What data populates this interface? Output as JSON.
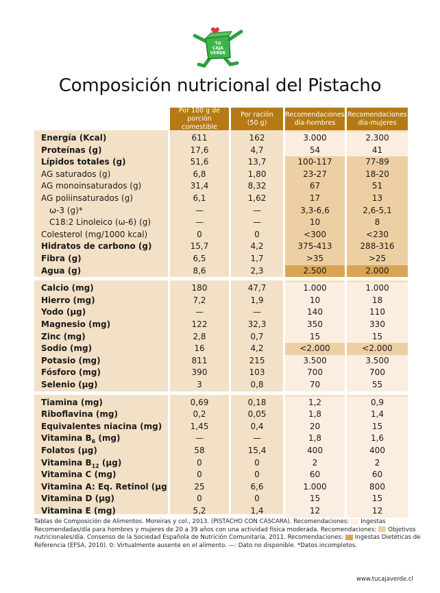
{
  "title": "Composición nutricional del Pistacho",
  "logo_text": [
    "TU",
    "CAJA",
    "VERDE"
  ],
  "colors": {
    "header": "#b67a14",
    "body": "#f3e1c7",
    "ingesta": "#fbeee0",
    "objetivo": "#edcfa4",
    "rdi": "#d8a656",
    "logo_green": "#3bb54a"
  },
  "headers": [
    [
      "Por 100 g de",
      "porción comestible"
    ],
    [
      "Por ración",
      "(50 g)"
    ],
    [
      "Recomendaciones",
      "día-hombres"
    ],
    [
      "Recomendaciones",
      "día-mujeres"
    ]
  ],
  "rows": [
    {
      "label": "Energía (Kcal)",
      "bold": true,
      "v": [
        "611",
        "162",
        "3.000",
        "2.300"
      ],
      "rec": "ing"
    },
    {
      "label": "Proteínas (g)",
      "bold": true,
      "v": [
        "17,6",
        "4,7",
        "54",
        "41"
      ],
      "rec": "ing"
    },
    {
      "label": "Lípidos totales (g)",
      "bold": true,
      "v": [
        "51,6",
        "13,7",
        "100-117",
        "77-89"
      ],
      "rec": "obj"
    },
    {
      "label": "AG saturados (g)",
      "bold": false,
      "v": [
        "6,8",
        "1,80",
        "23-27",
        "18-20"
      ],
      "rec": "obj"
    },
    {
      "label": "AG monoinsaturados (g)",
      "bold": false,
      "v": [
        "31,4",
        "8,32",
        "67",
        "51"
      ],
      "rec": "obj"
    },
    {
      "label": "AG poliinsaturados (g)",
      "bold": false,
      "v": [
        "6,1",
        "1,62",
        "17",
        "13"
      ],
      "rec": "obj"
    },
    {
      "label": "ω-3 (g)*",
      "bold": false,
      "indent": true,
      "v": [
        "—",
        "—",
        "3,3-6,6",
        "2,6-5,1"
      ],
      "rec": "obj"
    },
    {
      "label": "C18:2 Linoleico (ω-6) (g)",
      "bold": false,
      "indent": true,
      "v": [
        "—",
        "—",
        "10",
        "8"
      ],
      "rec": "obj"
    },
    {
      "label": "Colesterol (mg/1000 kcal)",
      "bold": false,
      "v": [
        "0",
        "0",
        "<300",
        "<230"
      ],
      "rec": "obj"
    },
    {
      "label": "Hidratos de carbono (g)",
      "bold": true,
      "v": [
        "15,7",
        "4,2",
        "375-413",
        "288-316"
      ],
      "rec": "obj"
    },
    {
      "label": "Fibra (g)",
      "bold": true,
      "v": [
        "6,5",
        "1,7",
        ">35",
        ">25"
      ],
      "rec": "obj"
    },
    {
      "label": "Agua (g)",
      "bold": true,
      "v": [
        "8,6",
        "2,3",
        "2.500",
        "2.000"
      ],
      "rec": "rdi"
    },
    {
      "label": "Calcio (mg)",
      "bold": true,
      "v": [
        "180",
        "47,7",
        "1.000",
        "1.000"
      ],
      "rec": "ing"
    },
    {
      "label": "Hierro (mg)",
      "bold": true,
      "v": [
        "7,2",
        "1,9",
        "10",
        "18"
      ],
      "rec": "ing"
    },
    {
      "label": "Yodo (µg)",
      "bold": true,
      "v": [
        "—",
        "—",
        "140",
        "110"
      ],
      "rec": "ing"
    },
    {
      "label": "Magnesio (mg)",
      "bold": true,
      "v": [
        "122",
        "32,3",
        "350",
        "330"
      ],
      "rec": "ing"
    },
    {
      "label": "Zinc (mg)",
      "bold": true,
      "v": [
        "2,8",
        "0,7",
        "15",
        "15"
      ],
      "rec": "ing"
    },
    {
      "label": "Sodio (mg)",
      "bold": true,
      "v": [
        "16",
        "4,2",
        "<2.000",
        "<2.000"
      ],
      "rec": "obj"
    },
    {
      "label": "Potasio (mg)",
      "bold": true,
      "v": [
        "811",
        "215",
        "3.500",
        "3.500"
      ],
      "rec": "ing"
    },
    {
      "label": "Fósforo (mg)",
      "bold": true,
      "v": [
        "390",
        "103",
        "700",
        "700"
      ],
      "rec": "ing"
    },
    {
      "label": "Selenio (µg)",
      "bold": true,
      "v": [
        "3",
        "0,8",
        "70",
        "55"
      ],
      "rec": "ing"
    },
    {
      "label": "Tiamina (mg)",
      "bold": true,
      "v": [
        "0,69",
        "0,18",
        "1,2",
        "0,9"
      ],
      "rec": "ing"
    },
    {
      "label": "Riboflavina (mg)",
      "bold": true,
      "v": [
        "0,2",
        "0,05",
        "1,8",
        "1,4"
      ],
      "rec": "ing"
    },
    {
      "label": "Equivalentes niacina (mg)",
      "bold": true,
      "v": [
        "1,45",
        "0,4",
        "20",
        "15"
      ],
      "rec": "ing"
    },
    {
      "label": "Vitamina B",
      "sub": "6",
      "label_end": " (mg)",
      "bold": true,
      "v": [
        "—",
        "—",
        "1,8",
        "1,6"
      ],
      "rec": "ing"
    },
    {
      "label": "Folatos (µg)",
      "bold": true,
      "v": [
        "58",
        "15,4",
        "400",
        "400"
      ],
      "rec": "ing"
    },
    {
      "label": "Vitamina B",
      "sub": "12",
      "label_end": " (µg)",
      "bold": true,
      "v": [
        "0",
        "0",
        "2",
        "2"
      ],
      "rec": "ing"
    },
    {
      "label": "Vitamina C (mg)",
      "bold": true,
      "v": [
        "0",
        "0",
        "60",
        "60"
      ],
      "rec": "ing"
    },
    {
      "label": "Vitamina A: Eq. Retinol (µg)",
      "bold": true,
      "v": [
        "25",
        "6,6",
        "1.000",
        "800"
      ],
      "rec": "ing"
    },
    {
      "label": "Vitamina D (µg)",
      "bold": true,
      "v": [
        "0",
        "0",
        "15",
        "15"
      ],
      "rec": "ing"
    },
    {
      "label": "Vitamina E (mg)",
      "bold": true,
      "v": [
        "5,2",
        "1,4",
        "12",
        "12"
      ],
      "rec": "ing"
    }
  ],
  "footnote": {
    "p1": "Tablas de Composición de Alimentos. Moreiras y col., 2013. (PISTACHO CON CÁSCARA). Recomendaciones:",
    "p2": "Ingestas Recomendadas/día para hombres y mujeres de 20 a 39 años con una actividad física moderada. Recomendaciones:",
    "p3": "Objetivos nutricionales/día. Consenso de la Sociedad Española de Nutrición Comunitaria, 2011. Recomendaciones:",
    "p4": "Ingestas Dietéticas de Referencia (EFSA, 2010). 0: Virtualmente ausente en el alimento. —: Dato no disponible. *Datos incompletos."
  },
  "url": "www.tucajaverde.cl"
}
